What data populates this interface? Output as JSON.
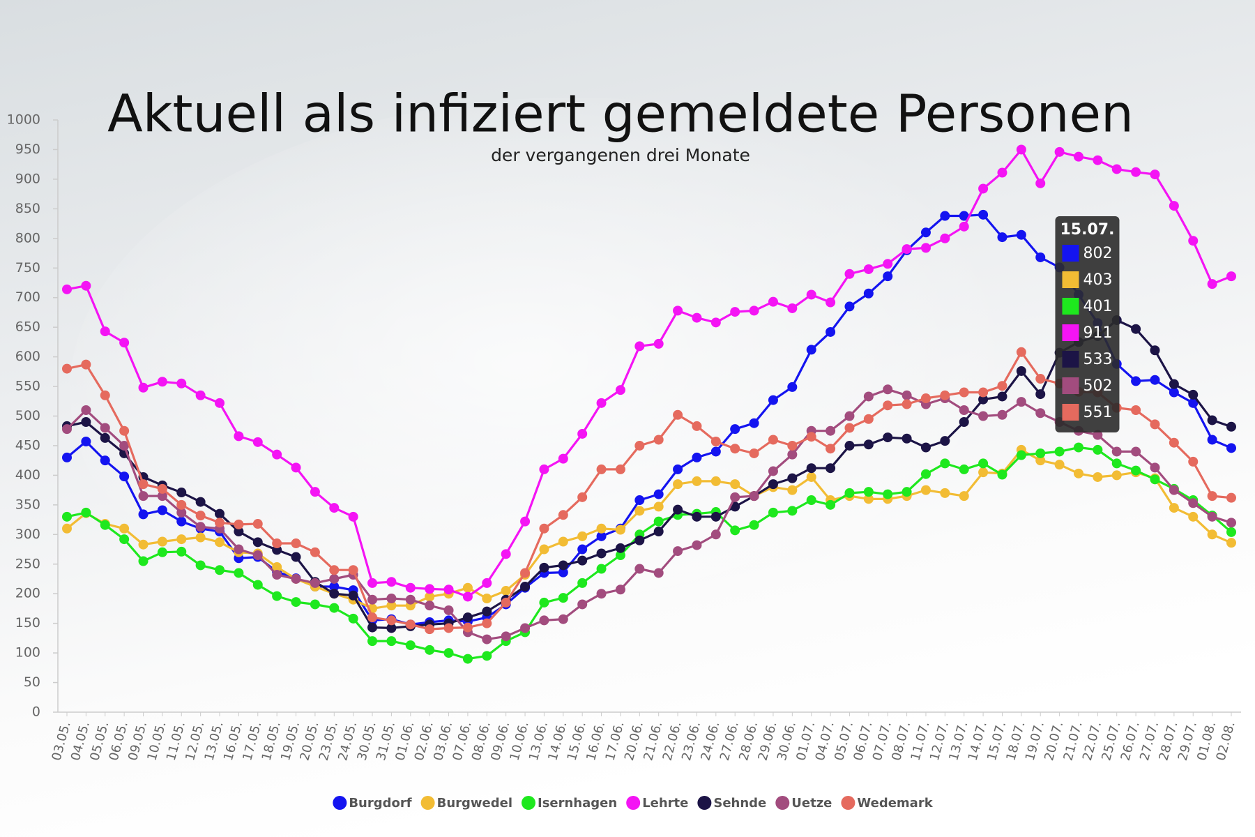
{
  "chart_data": {
    "type": "line",
    "title": "Aktuell als infiziert gemeldete Personen",
    "subtitle": "der vergangenen drei Monate",
    "categories": [
      "03.05.",
      "04.05.",
      "05.05.",
      "06.05.",
      "09.05.",
      "10.05.",
      "11.05.",
      "12.05.",
      "13.05.",
      "16.05.",
      "17.05.",
      "18.05.",
      "19.05.",
      "20.05.",
      "23.05.",
      "24.05.",
      "30.05.",
      "31.05.",
      "01.06.",
      "02.06.",
      "03.06.",
      "07.06.",
      "08.06.",
      "09.06.",
      "10.06.",
      "13.06.",
      "14.06.",
      "15.06.",
      "16.06.",
      "17.06.",
      "20.06.",
      "21.06.",
      "22.06.",
      "23.06.",
      "24.06.",
      "27.06.",
      "28.06.",
      "29.06.",
      "30.06.",
      "01.07.",
      "04.07.",
      "05.07.",
      "06.07.",
      "07.07.",
      "08.07.",
      "11.07.",
      "12.07.",
      "13.07.",
      "14.07.",
      "15.07.",
      "18.07.",
      "19.07.",
      "20.07.",
      "21.07.",
      "22.07.",
      "25.07.",
      "26.07.",
      "27.07.",
      "28.07.",
      "29.07.",
      "01.08.",
      "02.08."
    ],
    "series": [
      {
        "name": "Burgdorf",
        "color": "#1414f0",
        "values": [
          430,
          457,
          425,
          398,
          334,
          341,
          322,
          310,
          305,
          260,
          262,
          237,
          226,
          212,
          212,
          206,
          155,
          157,
          148,
          152,
          155,
          153,
          160,
          182,
          210,
          235,
          236,
          275,
          297,
          310,
          358,
          368,
          410,
          430,
          440,
          478,
          488,
          527,
          549,
          612,
          642,
          685,
          707,
          736,
          780,
          810,
          838,
          838,
          840,
          802,
          806,
          768,
          751,
          705,
          657,
          588,
          559,
          561,
          540,
          522,
          460,
          446
        ]
      },
      {
        "name": "Burgwedel",
        "color": "#f2bc34",
        "values": [
          310,
          336,
          318,
          310,
          283,
          288,
          292,
          295,
          287,
          270,
          268,
          245,
          225,
          212,
          200,
          190,
          175,
          180,
          180,
          195,
          200,
          210,
          192,
          205,
          232,
          275,
          288,
          297,
          310,
          308,
          340,
          347,
          385,
          390,
          390,
          385,
          365,
          380,
          375,
          397,
          358,
          365,
          360,
          360,
          365,
          375,
          370,
          365,
          405,
          403,
          443,
          425,
          418,
          403,
          397,
          400,
          405,
          395,
          345,
          330,
          300,
          286
        ]
      },
      {
        "name": "Isernhagen",
        "color": "#1ee81e",
        "values": [
          330,
          337,
          316,
          292,
          255,
          270,
          271,
          248,
          240,
          235,
          215,
          196,
          186,
          182,
          176,
          158,
          120,
          120,
          113,
          105,
          100,
          90,
          95,
          120,
          135,
          185,
          193,
          218,
          242,
          265,
          300,
          322,
          333,
          335,
          338,
          307,
          316,
          337,
          340,
          358,
          350,
          370,
          372,
          368,
          372,
          402,
          420,
          410,
          420,
          401,
          434,
          437,
          440,
          447,
          443,
          420,
          408,
          393,
          377,
          358,
          332,
          304
        ]
      },
      {
        "name": "Lehrte",
        "color": "#f414f4",
        "values": [
          714,
          720,
          643,
          624,
          548,
          558,
          555,
          535,
          522,
          466,
          456,
          435,
          413,
          372,
          345,
          330,
          218,
          220,
          210,
          208,
          207,
          195,
          218,
          267,
          322,
          410,
          428,
          470,
          522,
          544,
          618,
          622,
          678,
          666,
          658,
          676,
          678,
          693,
          682,
          705,
          692,
          740,
          748,
          757,
          782,
          784,
          800,
          820,
          884,
          911,
          950,
          893,
          946,
          938,
          932,
          917,
          912,
          908,
          855,
          796,
          723,
          736
        ]
      },
      {
        "name": "Sehnde",
        "color": "#1c1446",
        "values": [
          483,
          490,
          463,
          437,
          397,
          383,
          371,
          355,
          335,
          305,
          287,
          274,
          262,
          220,
          200,
          197,
          143,
          142,
          145,
          148,
          150,
          160,
          170,
          190,
          212,
          244,
          248,
          256,
          268,
          277,
          290,
          305,
          342,
          330,
          330,
          347,
          365,
          385,
          395,
          412,
          412,
          450,
          452,
          464,
          462,
          447,
          458,
          490,
          528,
          533,
          576,
          537,
          607,
          625,
          635,
          662,
          647,
          611,
          554,
          536,
          493,
          482
        ]
      },
      {
        "name": "Uetze",
        "color": "#a24c7e",
        "values": [
          478,
          510,
          480,
          450,
          365,
          365,
          337,
          313,
          310,
          275,
          265,
          232,
          225,
          218,
          225,
          232,
          190,
          192,
          190,
          180,
          172,
          135,
          123,
          128,
          142,
          155,
          157,
          182,
          200,
          207,
          242,
          235,
          272,
          282,
          300,
          363,
          365,
          407,
          435,
          475,
          475,
          500,
          533,
          545,
          535,
          520,
          530,
          510,
          500,
          502,
          524,
          505,
          490,
          475,
          468,
          440,
          440,
          413,
          375,
          353,
          330,
          320
        ]
      },
      {
        "name": "Wedemark",
        "color": "#e56a5e",
        "values": [
          580,
          587,
          535,
          475,
          385,
          377,
          350,
          332,
          320,
          317,
          318,
          285,
          285,
          270,
          240,
          240,
          160,
          155,
          148,
          140,
          142,
          143,
          150,
          185,
          235,
          310,
          333,
          363,
          410,
          410,
          450,
          460,
          502,
          483,
          457,
          445,
          437,
          460,
          450,
          465,
          445,
          480,
          495,
          518,
          520,
          530,
          535,
          540,
          540,
          551,
          608,
          563,
          555,
          541,
          540,
          514,
          510,
          486,
          455,
          423,
          365,
          362
        ]
      }
    ],
    "ylim": [
      0,
      1000
    ],
    "yticks": [
      0,
      50,
      100,
      150,
      200,
      250,
      300,
      350,
      400,
      450,
      500,
      550,
      600,
      650,
      700,
      750,
      800,
      850,
      900,
      950,
      1000
    ],
    "grid": false,
    "legend": "bottom",
    "tooltip": {
      "x": "15.07."
    }
  }
}
